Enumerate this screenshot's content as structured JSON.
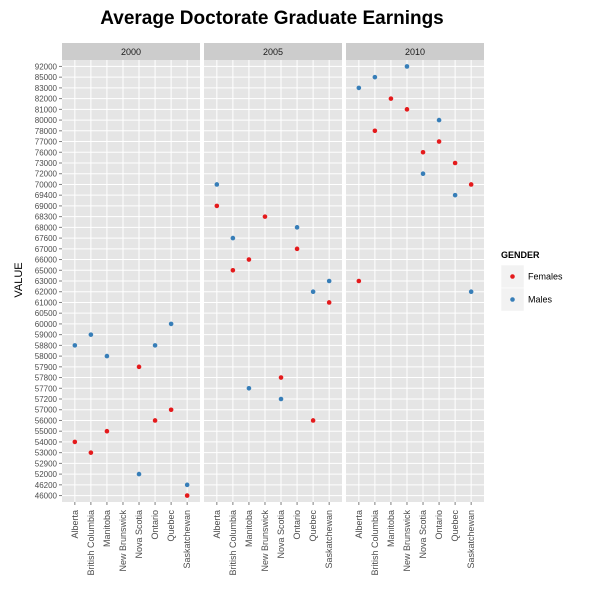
{
  "chart_data": {
    "type": "scatter",
    "title": "Average Doctorate Graduate Earnings",
    "xlabel": "",
    "ylabel": "VALUE",
    "facet_var": "year",
    "facets": [
      "2000",
      "2005",
      "2010"
    ],
    "categories": [
      "Alberta",
      "British Columbia",
      "Manitoba",
      "New Brunswick",
      "Nova Scotia",
      "Ontario",
      "Quebec",
      "Saskatchewan"
    ],
    "y_levels": [
      "46000",
      "46200",
      "52000",
      "52900",
      "53000",
      "54000",
      "55000",
      "56000",
      "57000",
      "57200",
      "57700",
      "57800",
      "57900",
      "58000",
      "58800",
      "59000",
      "60000",
      "60500",
      "61000",
      "62000",
      "63000",
      "65000",
      "66000",
      "67000",
      "67600",
      "68000",
      "68300",
      "69000",
      "69400",
      "70000",
      "72000",
      "73000",
      "76000",
      "77000",
      "78000",
      "80000",
      "81000",
      "82000",
      "83000",
      "85000",
      "92000"
    ],
    "legend": {
      "title": "GENDER",
      "entries": [
        {
          "name": "Females",
          "color": "#e41a1c"
        },
        {
          "name": "Males",
          "color": "#377eb8"
        }
      ]
    },
    "grid": true,
    "legend_position": "right",
    "series": [
      {
        "name": "Females",
        "color": "#e41a1c",
        "points": [
          {
            "facet": "2000",
            "x": "Alberta",
            "y": "54000"
          },
          {
            "facet": "2000",
            "x": "British Columbia",
            "y": "53000"
          },
          {
            "facet": "2000",
            "x": "Manitoba",
            "y": "55000"
          },
          {
            "facet": "2000",
            "x": "Nova Scotia",
            "y": "57900"
          },
          {
            "facet": "2000",
            "x": "Ontario",
            "y": "56000"
          },
          {
            "facet": "2000",
            "x": "Quebec",
            "y": "57000"
          },
          {
            "facet": "2000",
            "x": "Saskatchewan",
            "y": "46000"
          },
          {
            "facet": "2005",
            "x": "Alberta",
            "y": "69000"
          },
          {
            "facet": "2005",
            "x": "British Columbia",
            "y": "65000"
          },
          {
            "facet": "2005",
            "x": "Manitoba",
            "y": "66000"
          },
          {
            "facet": "2005",
            "x": "New Brunswick",
            "y": "68300"
          },
          {
            "facet": "2005",
            "x": "Nova Scotia",
            "y": "57800"
          },
          {
            "facet": "2005",
            "x": "Ontario",
            "y": "67000"
          },
          {
            "facet": "2005",
            "x": "Quebec",
            "y": "56000"
          },
          {
            "facet": "2005",
            "x": "Saskatchewan",
            "y": "61000"
          },
          {
            "facet": "2010",
            "x": "Alberta",
            "y": "63000"
          },
          {
            "facet": "2010",
            "x": "British Columbia",
            "y": "78000"
          },
          {
            "facet": "2010",
            "x": "Manitoba",
            "y": "82000"
          },
          {
            "facet": "2010",
            "x": "New Brunswick",
            "y": "81000"
          },
          {
            "facet": "2010",
            "x": "Nova Scotia",
            "y": "76000"
          },
          {
            "facet": "2010",
            "x": "Ontario",
            "y": "77000"
          },
          {
            "facet": "2010",
            "x": "Quebec",
            "y": "73000"
          },
          {
            "facet": "2010",
            "x": "Saskatchewan",
            "y": "70000"
          }
        ]
      },
      {
        "name": "Males",
        "color": "#377eb8",
        "points": [
          {
            "facet": "2000",
            "x": "Alberta",
            "y": "58800"
          },
          {
            "facet": "2000",
            "x": "British Columbia",
            "y": "59000"
          },
          {
            "facet": "2000",
            "x": "Manitoba",
            "y": "58000"
          },
          {
            "facet": "2000",
            "x": "Nova Scotia",
            "y": "52000"
          },
          {
            "facet": "2000",
            "x": "Ontario",
            "y": "58800"
          },
          {
            "facet": "2000",
            "x": "Quebec",
            "y": "60000"
          },
          {
            "facet": "2000",
            "x": "Saskatchewan",
            "y": "46200"
          },
          {
            "facet": "2005",
            "x": "Alberta",
            "y": "70000"
          },
          {
            "facet": "2005",
            "x": "British Columbia",
            "y": "67600"
          },
          {
            "facet": "2005",
            "x": "Manitoba",
            "y": "57700"
          },
          {
            "facet": "2005",
            "x": "Nova Scotia",
            "y": "57200"
          },
          {
            "facet": "2005",
            "x": "Ontario",
            "y": "68000"
          },
          {
            "facet": "2005",
            "x": "Quebec",
            "y": "62000"
          },
          {
            "facet": "2005",
            "x": "Saskatchewan",
            "y": "63000"
          },
          {
            "facet": "2010",
            "x": "Alberta",
            "y": "83000"
          },
          {
            "facet": "2010",
            "x": "British Columbia",
            "y": "85000"
          },
          {
            "facet": "2010",
            "x": "New Brunswick",
            "y": "92000"
          },
          {
            "facet": "2010",
            "x": "Nova Scotia",
            "y": "72000"
          },
          {
            "facet": "2010",
            "x": "Ontario",
            "y": "80000"
          },
          {
            "facet": "2010",
            "x": "Quebec",
            "y": "69400"
          },
          {
            "facet": "2010",
            "x": "Saskatchewan",
            "y": "62000"
          }
        ]
      }
    ]
  }
}
